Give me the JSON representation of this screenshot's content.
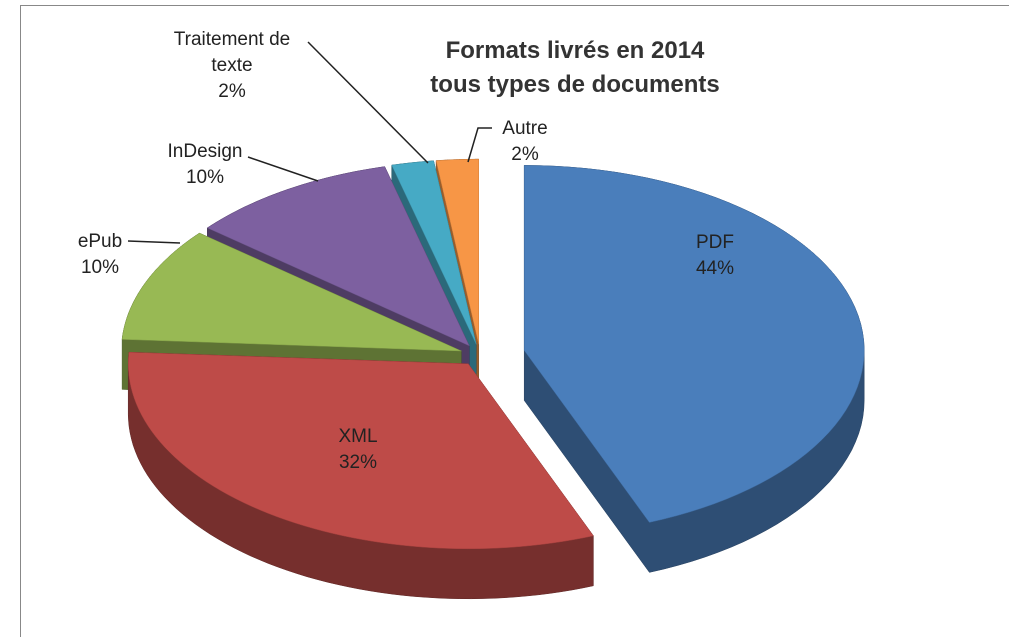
{
  "chart_data": {
    "type": "pie3d",
    "title": [
      "Formats livrés en 2014",
      "tous types de documents"
    ],
    "categories": [
      "PDF",
      "XML",
      "ePub",
      "InDesign",
      "Traitement de texte",
      "Autre"
    ],
    "values": [
      44,
      32,
      10,
      10,
      2,
      2
    ],
    "value_labels": [
      "44%",
      "32%",
      "10%",
      "10%",
      "2%",
      "2%"
    ],
    "colors": [
      "#4a7ebb",
      "#be4b48",
      "#98b954",
      "#7d60a0",
      "#46aac5",
      "#f79646"
    ]
  }
}
